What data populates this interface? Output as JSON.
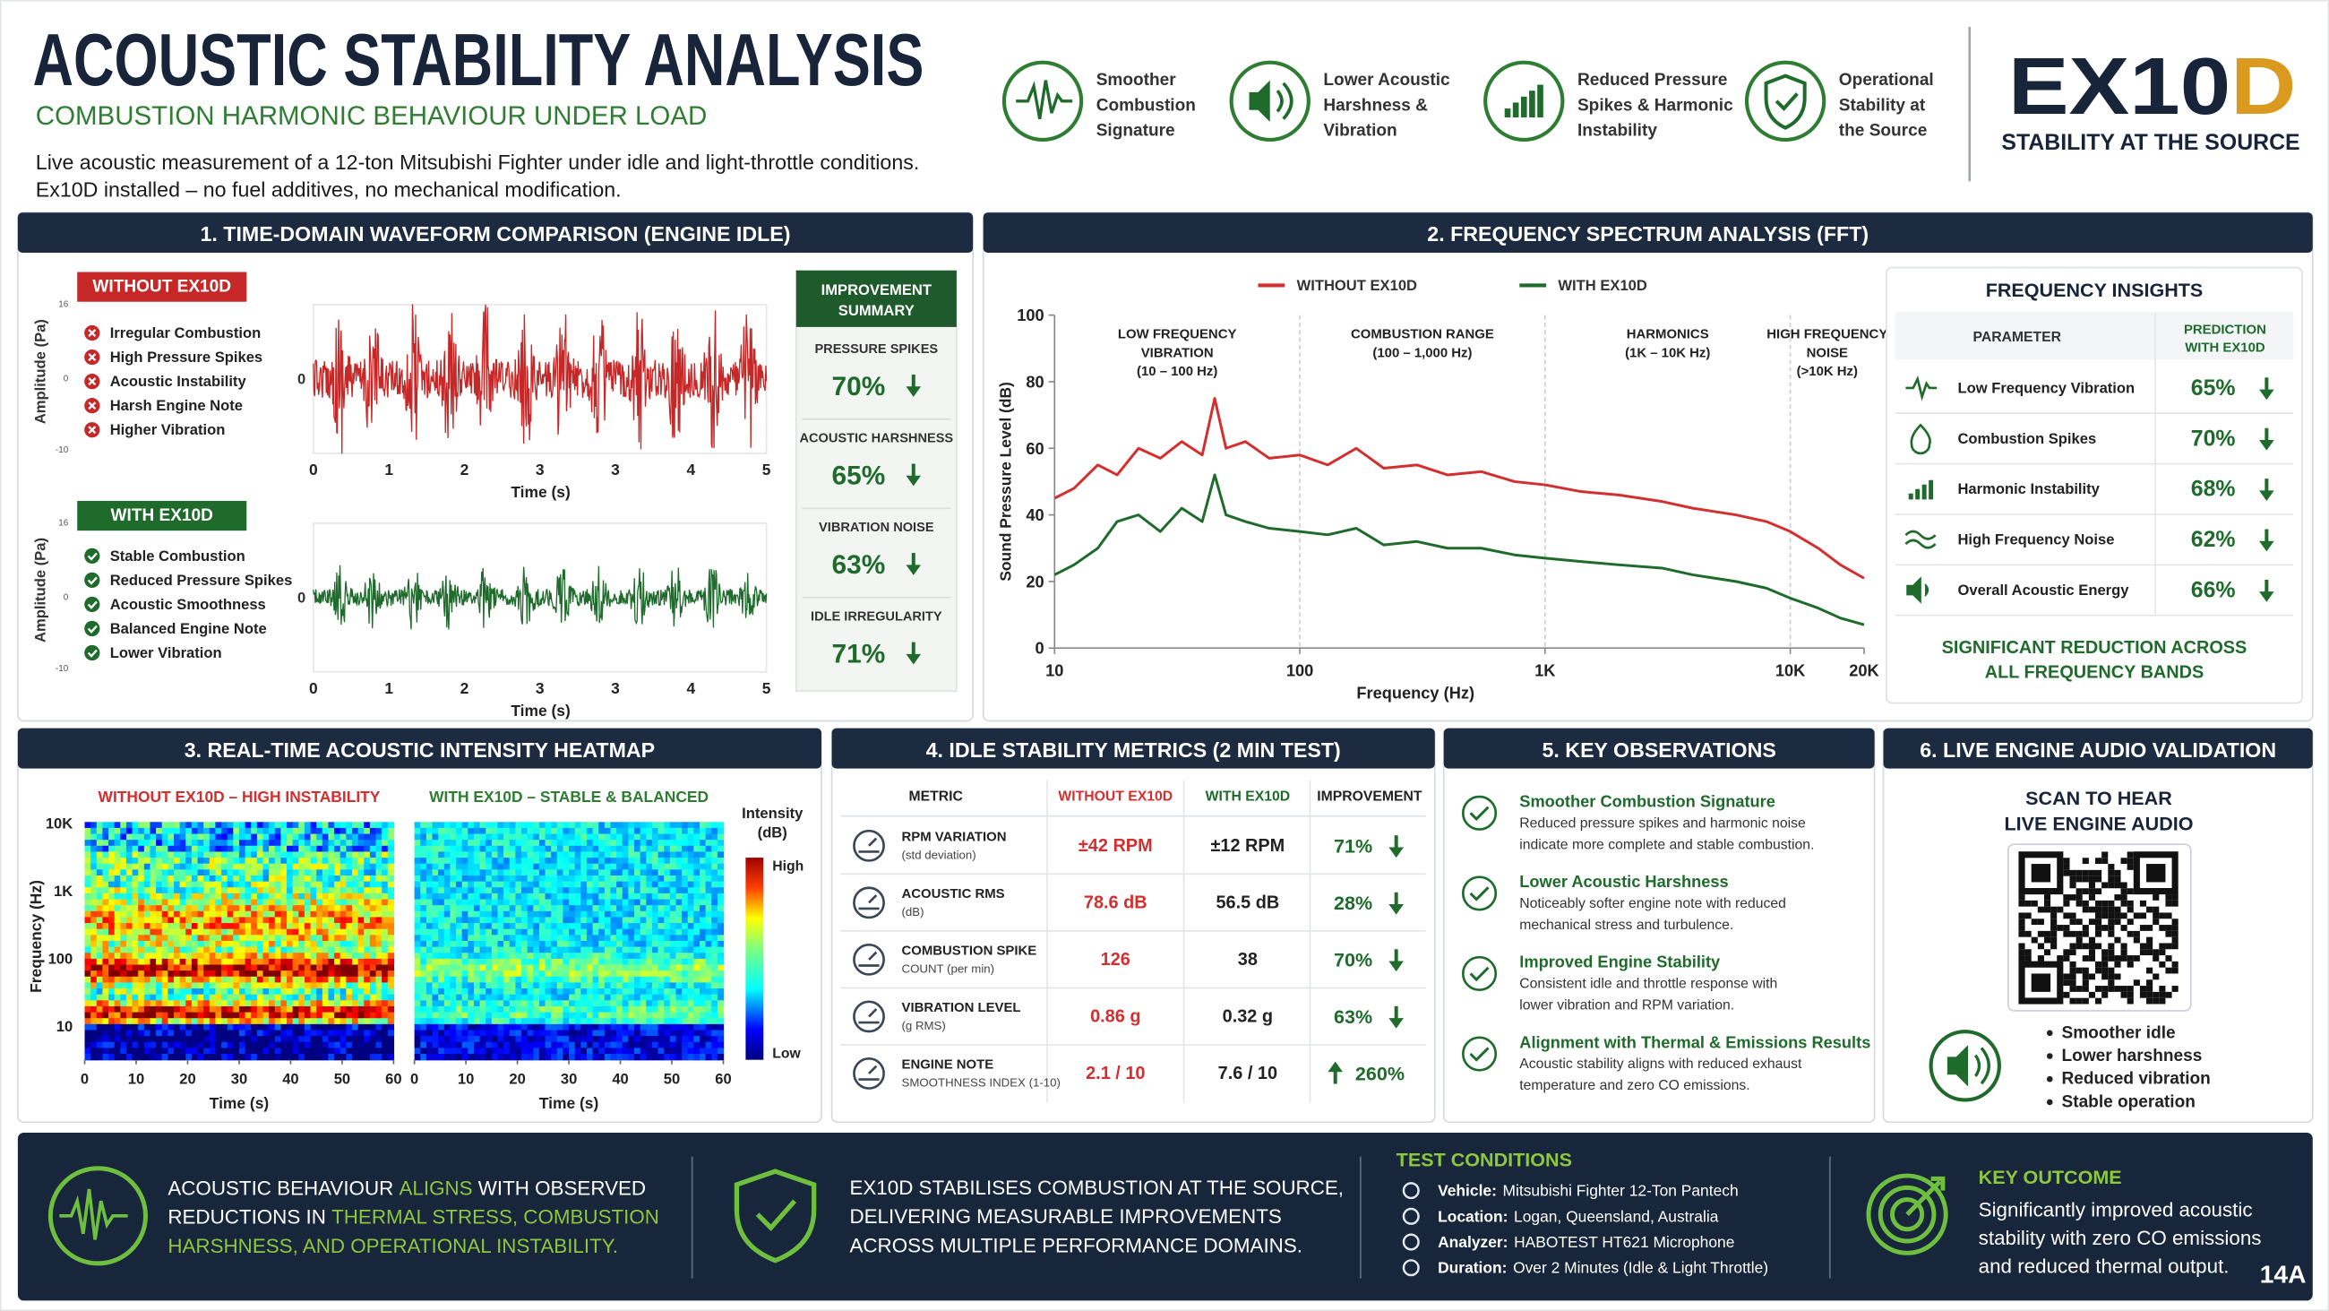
{
  "header": {
    "title": "ACOUSTIC STABILITY ANALYSIS",
    "subtitle": "COMBUSTION HARMONIC BEHAVIOUR UNDER LOAD",
    "description": [
      "Live acoustic measurement of a 12-ton Mitsubishi Fighter under idle and light-throttle conditions.",
      "Ex10D installed – no fuel additives, no mechanical modification."
    ],
    "benefits": [
      {
        "lines": [
          "Smoother",
          "Combustion",
          "Signature"
        ]
      },
      {
        "lines": [
          "Lower Acoustic",
          "Harshness &",
          "Vibration"
        ]
      },
      {
        "lines": [
          "Reduced Pressure",
          "Spikes & Harmonic",
          "Instability"
        ]
      },
      {
        "lines": [
          "Operational",
          "Stability at",
          "the Source"
        ]
      }
    ],
    "logo": {
      "main": "EX10",
      "accent": "D",
      "tagline": "STABILITY AT THE SOURCE"
    }
  },
  "waveform": {
    "heading": "1. TIME-DOMAIN WAVEFORM COMPARISON (ENGINE IDLE)",
    "ylabel": "Amplitude (Pa)",
    "xlabel": "Time (s)",
    "xticks": [
      "0",
      "1",
      "2",
      "3",
      "3",
      "4",
      "5"
    ],
    "yticks": [
      "16",
      "0",
      "-10"
    ],
    "groups": [
      {
        "badge": "WITHOUT EX10D",
        "color": "#c62828",
        "items": [
          "Irregular Combustion",
          "High Pressure Spikes",
          "Acoustic Instability",
          "Harsh Engine Note",
          "Higher Vibration"
        ]
      },
      {
        "badge": "WITH EX10D",
        "color": "#1e6b2b",
        "items": [
          "Stable Combustion",
          "Reduced Pressure Spikes",
          "Acoustic Smoothness",
          "Balanced Engine Note",
          "Lower Vibration"
        ]
      }
    ],
    "summary": {
      "title": [
        "IMPROVEMENT",
        "SUMMARY"
      ],
      "items": [
        {
          "label": "PRESSURE SPIKES",
          "value": "70%"
        },
        {
          "label": "ACOUSTIC HARSHNESS",
          "value": "65%"
        },
        {
          "label": "VIBRATION NOISE",
          "value": "63%"
        },
        {
          "label": "IDLE IRREGULARITY",
          "value": "71%"
        }
      ]
    }
  },
  "chart_data": {
    "type": "line",
    "title": "2. FREQUENCY SPECTRUM ANALYSIS (FFT)",
    "xlabel": "Frequency (Hz)",
    "ylabel": "Sound Pressure Level (dB)",
    "xscale": "log",
    "grid": false,
    "legend": "top",
    "x": [
      10,
      12,
      15,
      18,
      22,
      27,
      33,
      40,
      45,
      50,
      60,
      75,
      100,
      130,
      170,
      220,
      300,
      400,
      550,
      750,
      1000,
      1400,
      2000,
      3000,
      4000,
      6000,
      8000,
      10000,
      13000,
      16000,
      20000
    ],
    "series": [
      {
        "name": "WITHOUT EX10D",
        "color": "#d32f2f",
        "values": [
          45,
          48,
          55,
          52,
          60,
          57,
          62,
          58,
          75,
          60,
          62,
          57,
          58,
          55,
          60,
          54,
          55,
          52,
          53,
          50,
          49,
          47,
          46,
          44,
          42,
          40,
          38,
          35,
          30,
          25,
          21
        ]
      },
      {
        "name": "WITH EX10D",
        "color": "#1e6b2b",
        "values": [
          22,
          25,
          30,
          38,
          40,
          35,
          42,
          38,
          52,
          40,
          38,
          36,
          35,
          34,
          36,
          31,
          32,
          30,
          30,
          28,
          27,
          26,
          25,
          24,
          22,
          20,
          18,
          15,
          12,
          9,
          7
        ]
      }
    ],
    "xlim": [
      10,
      20000
    ],
    "ylim": [
      0,
      100
    ],
    "yticks": [
      0,
      20,
      40,
      60,
      80,
      100
    ],
    "xticks": [
      10,
      100,
      {
        "value": 1000,
        "label": "1K"
      },
      {
        "value": 10000,
        "label": "10K"
      },
      {
        "value": 20000,
        "label": "20K"
      }
    ],
    "regions": [
      {
        "label": [
          "LOW FREQUENCY",
          "VIBRATION",
          "(10 – 100 Hz)"
        ],
        "range": [
          10,
          100
        ]
      },
      {
        "label": [
          "COMBUSTION RANGE",
          "(100 – 1,000 Hz)"
        ],
        "range": [
          100,
          1000
        ]
      },
      {
        "label": [
          "HARMONICS",
          "(1K – 10K Hz)"
        ],
        "range": [
          1000,
          10000
        ]
      },
      {
        "label": [
          "HIGH FREQUENCY",
          "NOISE",
          "(>10K Hz)"
        ],
        "range": [
          10000,
          20000
        ]
      }
    ]
  },
  "insights": {
    "title": "FREQUENCY INSIGHTS",
    "parameter_header": "PARAMETER",
    "prediction_header": [
      "PREDICTION",
      "WITH EX10D"
    ],
    "rows": [
      {
        "name": "Low Frequency Vibration",
        "value": "65%"
      },
      {
        "name": "Combustion Spikes",
        "value": "70%"
      },
      {
        "name": "Harmonic Instability",
        "value": "68%"
      },
      {
        "name": "High Frequency Noise",
        "value": "62%"
      },
      {
        "name": "Overall Acoustic Energy",
        "value": "66%"
      }
    ],
    "note": [
      "SIGNIFICANT REDUCTION ACROSS",
      "ALL FREQUENCY BANDS"
    ]
  },
  "heatmap": {
    "heading": "3. REAL-TIME ACOUSTIC INTENSITY HEATMAP",
    "panels": [
      {
        "label": "WITHOUT EX10D – HIGH INSTABILITY",
        "color": "#d32f2f"
      },
      {
        "label": "WITH EX10D – STABLE & BALANCED",
        "color": "#2e7d32"
      }
    ],
    "ylabel": "Frequency (Hz)",
    "yticks": [
      "10K",
      "1K",
      "100",
      "10"
    ],
    "xticks": [
      0,
      10,
      20,
      30,
      40,
      50,
      60
    ],
    "xlim": [
      0,
      60
    ],
    "xlabel": "Time (s)",
    "colorbar": {
      "title": [
        "Intensity",
        "(dB)"
      ],
      "high": "High",
      "low": "Low"
    }
  },
  "metrics": {
    "heading": "4. IDLE STABILITY METRICS (2 MIN TEST)",
    "columns": [
      "METRIC",
      "WITHOUT EX10D",
      "WITH EX10D",
      "IMPROVEMENT"
    ],
    "rows": [
      {
        "metric": "RPM VARIATION",
        "note": "(std deviation)",
        "without": "±42 RPM",
        "with": "±12 RPM",
        "improvement": "71%",
        "direction": "down"
      },
      {
        "metric": "ACOUSTIC RMS",
        "note": "(dB)",
        "without": "78.6 dB",
        "with": "56.5 dB",
        "improvement": "28%",
        "direction": "down"
      },
      {
        "metric": "COMBUSTION SPIKE",
        "note": "COUNT (per min)",
        "without": "126",
        "with": "38",
        "improvement": "70%",
        "direction": "down"
      },
      {
        "metric": "VIBRATION LEVEL",
        "note": "(g RMS)",
        "without": "0.86 g",
        "with": "0.32 g",
        "improvement": "63%",
        "direction": "down"
      },
      {
        "metric": "ENGINE NOTE",
        "note": "SMOOTHNESS INDEX (1-10)",
        "without": "2.1 / 10",
        "with": "7.6 / 10",
        "improvement": "260%",
        "direction": "up"
      }
    ]
  },
  "observations": {
    "heading": "5. KEY OBSERVATIONS",
    "items": [
      {
        "title": "Smoother Combustion Signature",
        "text": [
          "Reduced pressure spikes and harmonic noise",
          "indicate more complete and stable combustion."
        ]
      },
      {
        "title": "Lower Acoustic Harshness",
        "text": [
          "Noticeably softer engine note with reduced",
          "mechanical stress and turbulence."
        ]
      },
      {
        "title": "Improved Engine Stability",
        "text": [
          "Consistent idle and throttle response with",
          "lower vibration and RPM variation."
        ]
      },
      {
        "title": "Alignment with Thermal & Emissions Results",
        "text": [
          "Acoustic stability aligns with reduced exhaust",
          "temperature and zero CO emissions."
        ]
      }
    ]
  },
  "audio": {
    "heading": "6. LIVE ENGINE AUDIO VALIDATION",
    "title": [
      "SCAN TO HEAR",
      "LIVE ENGINE AUDIO"
    ],
    "bullets": [
      "Smoother idle",
      "Lower harshness",
      "Reduced vibration",
      "Stable operation"
    ]
  },
  "footer": {
    "statement": [
      [
        {
          "text": "ACOUSTIC BEHAVIOUR ",
          "highlight": false
        },
        {
          "text": "ALIGNS",
          "highlight": true
        },
        {
          "text": " WITH OBSERVED",
          "highlight": false
        }
      ],
      [
        {
          "text": "REDUCTIONS IN ",
          "highlight": false
        },
        {
          "text": "THERMAL STRESS, COMBUSTION",
          "highlight": true
        }
      ],
      [
        {
          "text": "HARSHNESS, AND OPERATIONAL INSTABILITY.",
          "highlight": true
        }
      ]
    ],
    "claim": [
      "EX10D STABILISES COMBUSTION AT THE SOURCE,",
      "DELIVERING MEASURABLE IMPROVEMENTS",
      "ACROSS MULTIPLE PERFORMANCE DOMAINS."
    ],
    "conditions": {
      "title": "TEST CONDITIONS",
      "items": [
        {
          "label": "Vehicle:",
          "value": "Mitsubishi Fighter 12-Ton Pantech"
        },
        {
          "label": "Location:",
          "value": "Logan, Queensland, Australia"
        },
        {
          "label": "Analyzer:",
          "value": "HABOTEST HT621 Microphone"
        },
        {
          "label": "Duration:",
          "value": "Over 2 Minutes (Idle & Light Throttle)"
        }
      ]
    },
    "outcome": {
      "title": "KEY OUTCOME",
      "lines": [
        "Significantly improved acoustic",
        "stability with zero CO emissions",
        "and reduced thermal output."
      ]
    },
    "page": "14A"
  }
}
